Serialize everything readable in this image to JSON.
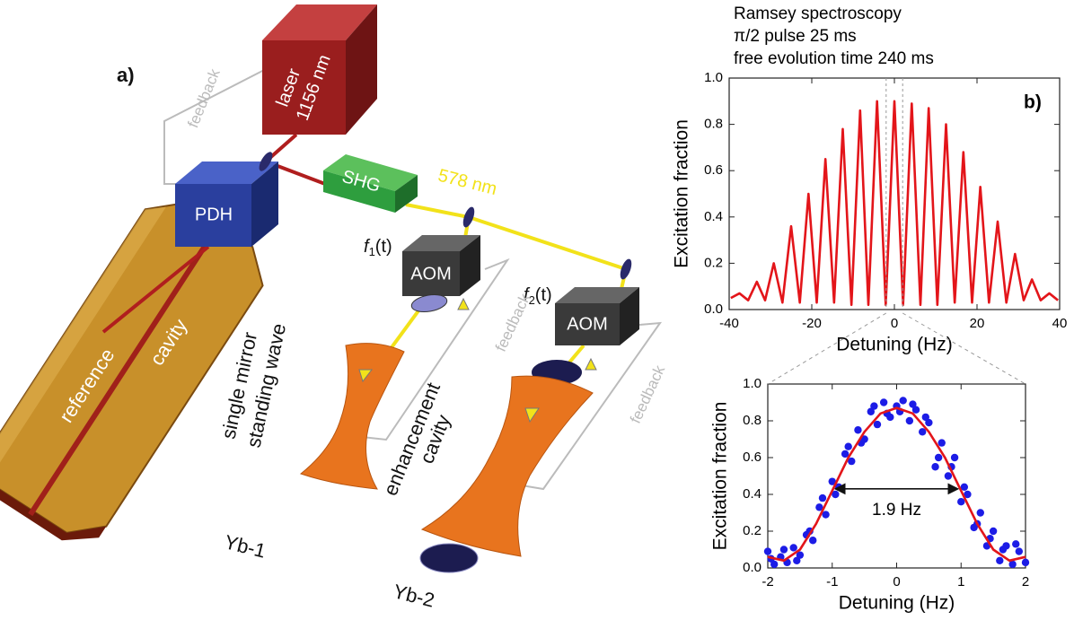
{
  "diagram": {
    "panel": "a)",
    "laser": [
      "laser",
      "1156 nm"
    ],
    "pdh": "PDH",
    "shg": "SHG",
    "green_wavelength": "578 nm",
    "aom_1": {
      "label": "AOM",
      "freq": "f",
      "sub": "1",
      "arg": "(t)"
    },
    "aom_2": {
      "label": "AOM",
      "freq": "f",
      "sub": "2",
      "arg": "(t)"
    },
    "feedback": [
      "feedback",
      "feedback",
      "feedback"
    ],
    "reference_cavity": [
      "reference",
      "cavity"
    ],
    "standing_wave": [
      "single mirror",
      "standing wave"
    ],
    "enhancement_cavity": [
      "enhancement",
      "cavity"
    ],
    "yb_1": "Yb-1",
    "yb_2": "Yb-2"
  },
  "chart_data": [
    {
      "type": "line",
      "title": [
        "Ramsey spectroscopy",
        "π/2 pulse 25 ms",
        "free evolution time 240 ms"
      ],
      "panel": "b)",
      "x_label": "Detuning (Hz)",
      "y_label": "Excitation fraction",
      "xlim": [
        -40,
        40
      ],
      "xticks": [
        -40,
        -20,
        0,
        20,
        40
      ],
      "ylim": [
        0,
        1
      ],
      "yticks": [
        {
          "value": 0,
          "label": "0.0"
        },
        0.2,
        0.4,
        0.6,
        0.8,
        {
          "value": 1,
          "label": "1.0"
        }
      ],
      "series": [
        {
          "type": "line",
          "color": "#e3151a",
          "x": [
            -39.6,
            -37.5,
            -35.4,
            -33.3,
            -31.3,
            -29.2,
            -27.1,
            -25,
            -22.9,
            -20.8,
            -18.8,
            -16.7,
            -14.6,
            -12.5,
            -10.4,
            -8.3,
            -6.3,
            -4.2,
            -2.1,
            0,
            2.1,
            4.2,
            6.3,
            8.3,
            10.4,
            12.5,
            14.6,
            16.7,
            18.8,
            20.8,
            22.9,
            25,
            27.1,
            29.2,
            31.3,
            33.3,
            35.4,
            37.5,
            39.6
          ],
          "values": [
            0.05,
            0.07,
            0.04,
            0.12,
            0.04,
            0.2,
            0.03,
            0.36,
            0.03,
            0.5,
            0.03,
            0.65,
            0.03,
            0.78,
            0.02,
            0.86,
            0.02,
            0.9,
            0.02,
            0.9,
            0.02,
            0.89,
            0.02,
            0.87,
            0.02,
            0.8,
            0.03,
            0.68,
            0.03,
            0.53,
            0.03,
            0.38,
            0.03,
            0.24,
            0.04,
            0.13,
            0.04,
            0.07,
            0.04
          ]
        }
      ]
    },
    {
      "type": "scatter",
      "x_label": "Detuning (Hz)",
      "y_label": "Excitation fraction",
      "xlim": [
        -2,
        2
      ],
      "xticks": [
        -2,
        -1,
        0,
        1,
        2
      ],
      "ylim": [
        0,
        1
      ],
      "yticks": [
        {
          "value": 0,
          "label": "0.0"
        },
        0.2,
        0.4,
        0.6,
        0.8,
        {
          "value": 1,
          "label": "1.0"
        }
      ],
      "series": [
        {
          "type": "scatter",
          "color": "#1c1ce6",
          "x": [
            -2.0,
            -1.9,
            -1.8,
            -1.7,
            -1.6,
            -1.5,
            -1.4,
            -1.3,
            -1.2,
            -1.1,
            -1.0,
            -0.9,
            -0.8,
            -0.7,
            -0.6,
            -0.5,
            -0.4,
            -0.3,
            -0.2,
            -0.1,
            0.0,
            0.1,
            0.2,
            0.3,
            0.4,
            0.5,
            0.6,
            0.7,
            0.8,
            0.9,
            1.0,
            1.1,
            1.2,
            1.3,
            1.4,
            1.5,
            1.6,
            1.7,
            1.8,
            1.9,
            2.0,
            -1.95,
            -1.75,
            -1.55,
            -1.35,
            -1.15,
            -0.95,
            -0.75,
            -0.55,
            -0.35,
            -0.15,
            0.05,
            0.25,
            0.45,
            0.65,
            0.85,
            1.05,
            1.25,
            1.45,
            1.65,
            1.85
          ],
          "values": [
            0.09,
            0.02,
            0.06,
            0.03,
            0.11,
            0.07,
            0.18,
            0.15,
            0.33,
            0.29,
            0.47,
            0.44,
            0.62,
            0.58,
            0.75,
            0.7,
            0.85,
            0.78,
            0.9,
            0.82,
            0.88,
            0.91,
            0.8,
            0.86,
            0.74,
            0.79,
            0.55,
            0.68,
            0.5,
            0.6,
            0.36,
            0.4,
            0.22,
            0.3,
            0.12,
            0.2,
            0.04,
            0.12,
            0.02,
            0.09,
            0.03,
            0.05,
            0.1,
            0.04,
            0.2,
            0.38,
            0.4,
            0.66,
            0.68,
            0.88,
            0.84,
            0.85,
            0.89,
            0.82,
            0.6,
            0.55,
            0.44,
            0.24,
            0.16,
            0.1,
            0.13
          ]
        },
        {
          "type": "line",
          "color": "#e3151a",
          "x": [
            -2,
            -1.75,
            -1.5,
            -1.25,
            -1,
            -0.75,
            -0.5,
            -0.25,
            0,
            0.25,
            0.5,
            0.75,
            1,
            1.25,
            1.5,
            1.75,
            2
          ],
          "values": [
            0.06,
            0.04,
            0.1,
            0.24,
            0.42,
            0.6,
            0.74,
            0.84,
            0.87,
            0.84,
            0.74,
            0.6,
            0.42,
            0.24,
            0.1,
            0.04,
            0.06
          ]
        }
      ],
      "annotation": {
        "text": "1.9 Hz",
        "x": [
          -0.95,
          0.95
        ],
        "y": 0.43
      }
    }
  ]
}
